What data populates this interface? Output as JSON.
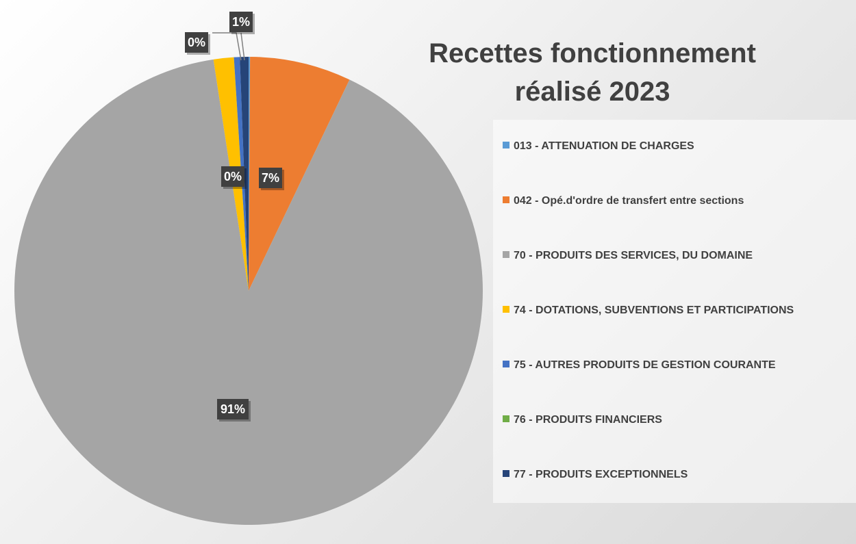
{
  "chart_data": {
    "type": "pie",
    "title": "Recettes fonctionnement réalisé 2023",
    "categories": [
      "013 - ATTENUATION DE CHARGES",
      "042 - Opé.d'ordre de transfert entre sections",
      "70 - PRODUITS DES SERVICES, DU DOMAINE",
      "74 - DOTATIONS, SUBVENTIONS ET PARTICIPATIONS",
      "75 - AUTRES PRODUITS DE GESTION COURANTE",
      "76 - PRODUITS FINANCIERS",
      "77 - PRODUITS EXCEPTIONNELS"
    ],
    "values": [
      0.1,
      7,
      90.6,
      1.4,
      0.4,
      0,
      0.6
    ],
    "value_labels": [
      "0%",
      "7%",
      "91%",
      null,
      "0%",
      null,
      "1%"
    ],
    "colors": [
      "#5b9bd5",
      "#ed7d31",
      "#a5a5a5",
      "#ffc000",
      "#4472c4",
      "#70ad47",
      "#264478"
    ],
    "legend": "right"
  }
}
